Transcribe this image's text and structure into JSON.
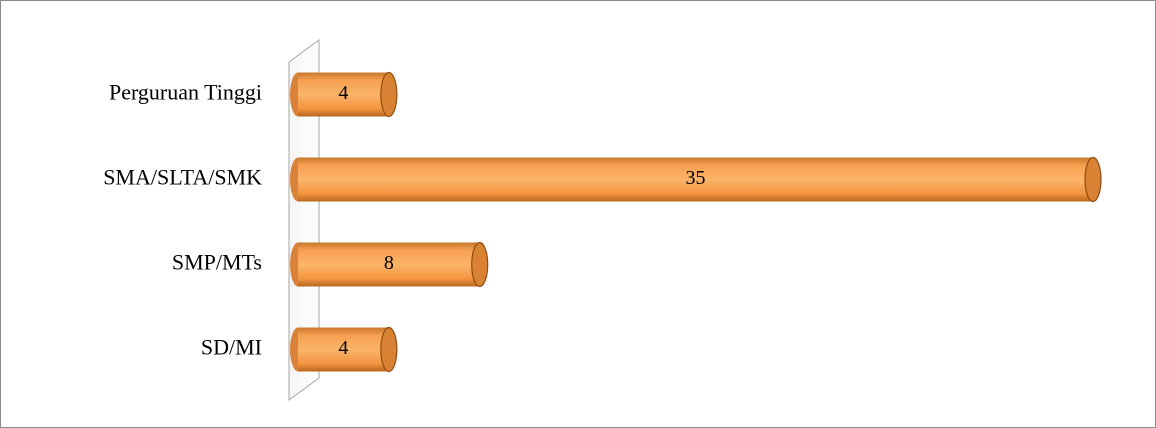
{
  "chart_data": {
    "type": "bar",
    "orientation": "horizontal",
    "categories": [
      "Perguruan Tinggi",
      "SMA/SLTA/SMK",
      "SMP/MTs",
      "SD/MI"
    ],
    "values": [
      4,
      35,
      8,
      4
    ],
    "color": "#f79646"
  }
}
